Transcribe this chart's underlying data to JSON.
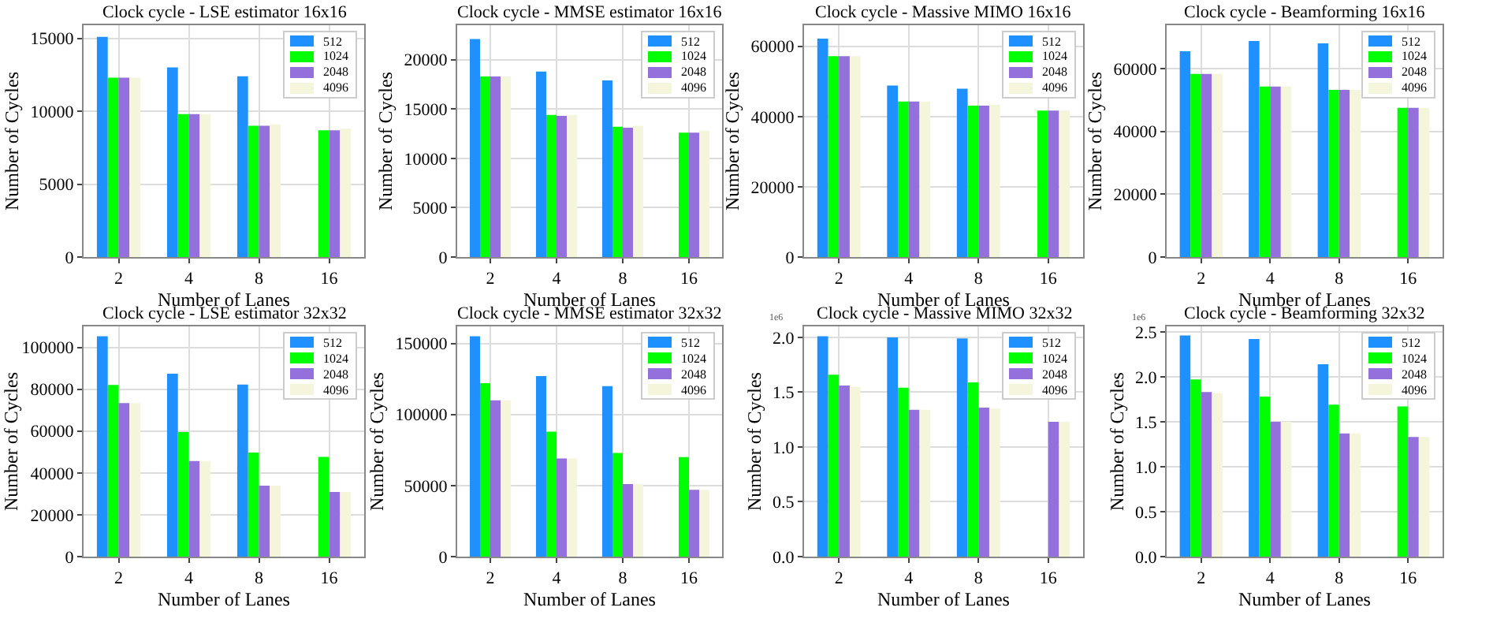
{
  "chart_data": [
    {
      "type": "bar",
      "title": "Clock cycle - LSE estimator 16x16",
      "xlabel": "Number of Lanes",
      "ylabel": "Number of Cycles",
      "categories": [
        "2",
        "4",
        "8",
        "16"
      ],
      "ylim": [
        0,
        15900
      ],
      "yticks": [
        0,
        5000,
        10000,
        15000
      ],
      "grid": true,
      "legend": "top right",
      "series": [
        {
          "name": "512",
          "color": "#1e90ff",
          "values": [
            15100,
            13000,
            12400,
            null
          ]
        },
        {
          "name": "1024",
          "color": "#00ff00",
          "values": [
            12300,
            9800,
            9000,
            8700
          ]
        },
        {
          "name": "2048",
          "color": "#9370db",
          "values": [
            12300,
            9800,
            9000,
            8700
          ]
        },
        {
          "name": "4096",
          "color": "#f5f5dc",
          "values": [
            12300,
            9800,
            9100,
            8800
          ]
        }
      ]
    },
    {
      "type": "bar",
      "title": "Clock cycle - MMSE estimator 16x16",
      "xlabel": "Number of Lanes",
      "ylabel": "Number of Cycles",
      "categories": [
        "2",
        "4",
        "8",
        "16"
      ],
      "ylim": [
        0,
        23500
      ],
      "yticks": [
        0,
        5000,
        10000,
        15000,
        20000
      ],
      "grid": true,
      "legend": "top right",
      "series": [
        {
          "name": "512",
          "color": "#1e90ff",
          "values": [
            22100,
            18800,
            17900,
            null
          ]
        },
        {
          "name": "1024",
          "color": "#00ff00",
          "values": [
            18300,
            14400,
            13200,
            12600
          ]
        },
        {
          "name": "2048",
          "color": "#9370db",
          "values": [
            18300,
            14300,
            13100,
            12600
          ]
        },
        {
          "name": "4096",
          "color": "#f5f5dc",
          "values": [
            18300,
            14400,
            13300,
            12800
          ]
        }
      ]
    },
    {
      "type": "bar",
      "title": "Clock cycle - Massive MIMO 16x16",
      "xlabel": "Number of Lanes",
      "ylabel": "Number of Cycles",
      "categories": [
        "2",
        "4",
        "8",
        "16"
      ],
      "ylim": [
        0,
        66000
      ],
      "yticks": [
        0,
        20000,
        40000,
        60000
      ],
      "grid": true,
      "legend": "top right",
      "series": [
        {
          "name": "512",
          "color": "#1e90ff",
          "values": [
            62200,
            48800,
            47900,
            null
          ]
        },
        {
          "name": "1024",
          "color": "#00ff00",
          "values": [
            57200,
            44300,
            43100,
            41700
          ]
        },
        {
          "name": "2048",
          "color": "#9370db",
          "values": [
            57200,
            44300,
            43100,
            41700
          ]
        },
        {
          "name": "4096",
          "color": "#f5f5dc",
          "values": [
            57200,
            44300,
            43300,
            41700
          ]
        }
      ]
    },
    {
      "type": "bar",
      "title": "Clock cycle - Beamforming 16x16",
      "xlabel": "Number of Lanes",
      "ylabel": "Number of Cycles",
      "categories": [
        "2",
        "4",
        "8",
        "16"
      ],
      "ylim": [
        0,
        73800
      ],
      "yticks": [
        0,
        20000,
        40000,
        60000
      ],
      "grid": true,
      "legend": "top right",
      "series": [
        {
          "name": "512",
          "color": "#1e90ff",
          "values": [
            65500,
            68800,
            68000,
            null
          ]
        },
        {
          "name": "1024",
          "color": "#00ff00",
          "values": [
            58300,
            54300,
            53200,
            47500
          ]
        },
        {
          "name": "2048",
          "color": "#9370db",
          "values": [
            58300,
            54300,
            53200,
            47500
          ]
        },
        {
          "name": "4096",
          "color": "#f5f5dc",
          "values": [
            58300,
            54300,
            53200,
            47500
          ]
        }
      ]
    },
    {
      "type": "bar",
      "title": "Clock cycle - LSE estimator 32x32",
      "xlabel": "Number of Lanes",
      "ylabel": "Number of Cycles",
      "categories": [
        "2",
        "4",
        "8",
        "16"
      ],
      "ylim": [
        0,
        110000
      ],
      "yticks": [
        0,
        20000,
        40000,
        60000,
        80000,
        100000
      ],
      "grid": true,
      "legend": "top right",
      "series": [
        {
          "name": "512",
          "color": "#1e90ff",
          "values": [
            105300,
            87400,
            82200,
            null
          ]
        },
        {
          "name": "1024",
          "color": "#00ff00",
          "values": [
            82000,
            59500,
            49700,
            47700
          ]
        },
        {
          "name": "2048",
          "color": "#9370db",
          "values": [
            73400,
            45700,
            33900,
            30900
          ]
        },
        {
          "name": "4096",
          "color": "#f5f5dc",
          "values": [
            73400,
            45700,
            33900,
            30900
          ]
        }
      ]
    },
    {
      "type": "bar",
      "title": "Clock cycle - MMSE estimator 32x32",
      "xlabel": "Number of Lanes",
      "ylabel": "Number of Cycles",
      "categories": [
        "2",
        "4",
        "8",
        "16"
      ],
      "ylim": [
        0,
        162000
      ],
      "yticks": [
        0,
        50000,
        100000,
        150000
      ],
      "grid": true,
      "legend": "top right",
      "series": [
        {
          "name": "512",
          "color": "#1e90ff",
          "values": [
            155000,
            127000,
            120000,
            null
          ]
        },
        {
          "name": "1024",
          "color": "#00ff00",
          "values": [
            122000,
            88000,
            73000,
            70000
          ]
        },
        {
          "name": "2048",
          "color": "#9370db",
          "values": [
            110000,
            69000,
            51000,
            47000
          ]
        },
        {
          "name": "4096",
          "color": "#f5f5dc",
          "values": [
            110000,
            69000,
            51000,
            47000
          ]
        }
      ]
    },
    {
      "type": "bar",
      "title": "Clock cycle - Massive MIMO 32x32",
      "xlabel": "Number of Lanes",
      "ylabel": "Number of Cycles",
      "categories": [
        "2",
        "4",
        "8",
        "16"
      ],
      "ylim": [
        0,
        2.1
      ],
      "yticks": [
        {
          "value": 0,
          "label": "0.0"
        },
        0.5,
        {
          "value": 1,
          "label": "1.0"
        },
        1.5,
        {
          "value": 2,
          "label": "2.0"
        }
      ],
      "grid": true,
      "legend": "top right",
      "annotations": [
        "1e6"
      ],
      "series": [
        {
          "name": "512",
          "color": "#1e90ff",
          "values": [
            2.01,
            2.0,
            1.99,
            null
          ]
        },
        {
          "name": "1024",
          "color": "#00ff00",
          "values": [
            1.66,
            1.54,
            1.59,
            null
          ]
        },
        {
          "name": "2048",
          "color": "#9370db",
          "values": [
            1.56,
            1.34,
            1.36,
            1.23
          ]
        },
        {
          "name": "4096",
          "color": "#f5f5dc",
          "values": [
            1.55,
            1.34,
            1.35,
            1.23
          ]
        }
      ]
    },
    {
      "type": "bar",
      "title": "Clock cycle - Beamforming 32x32",
      "xlabel": "Number of Lanes",
      "ylabel": "Number of Cycles",
      "categories": [
        "2",
        "4",
        "8",
        "16"
      ],
      "ylim": [
        0,
        2.56
      ],
      "yticks": [
        {
          "value": 0,
          "label": "0.0"
        },
        0.5,
        {
          "value": 1,
          "label": "1.0"
        },
        1.5,
        {
          "value": 2,
          "label": "2.0"
        },
        2.5
      ],
      "grid": true,
      "legend": "top right",
      "annotations": [
        "1e6"
      ],
      "series": [
        {
          "name": "512",
          "color": "#1e90ff",
          "values": [
            2.46,
            2.42,
            2.14,
            null
          ]
        },
        {
          "name": "1024",
          "color": "#00ff00",
          "values": [
            1.97,
            1.78,
            1.69,
            1.67
          ]
        },
        {
          "name": "2048",
          "color": "#9370db",
          "values": [
            1.83,
            1.5,
            1.37,
            1.33
          ]
        },
        {
          "name": "4096",
          "color": "#f5f5dc",
          "values": [
            1.82,
            1.5,
            1.37,
            1.33
          ]
        }
      ]
    }
  ]
}
